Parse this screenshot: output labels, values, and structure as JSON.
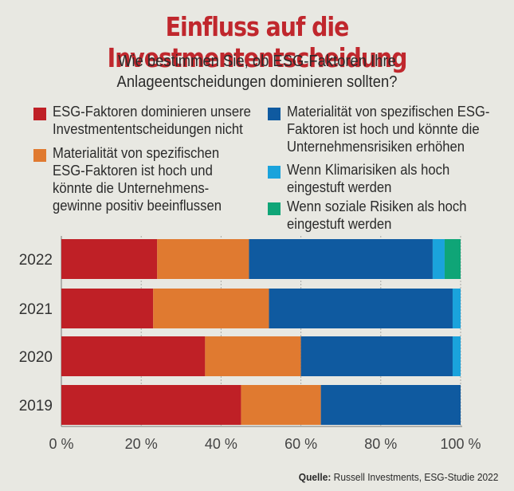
{
  "header": {
    "title": "Einfluss auf die Investmententscheidung",
    "subtitle_line1": "Wie bestimmen Sie, ob ESG-Faktoren Ihre",
    "subtitle_line2": "Anlageentscheidungen dominieren sollten?"
  },
  "legend": [
    {
      "label": "ESG-Faktoren dominieren unsere\nInvestmententscheidungen nicht",
      "color": "#bf2026"
    },
    {
      "label": "Materialität von spezifischen\nESG-Faktoren ist hoch und\nkönnte die Unternehmens-\ngewinne positiv beeinflussen",
      "color": "#e07a30"
    },
    {
      "label": "Materialität von spezifischen ESG-\nFaktoren ist hoch und könnte die\nUnternehmensrisiken erhöhen",
      "color": "#0f5aa0"
    },
    {
      "label": "Wenn Klimarisiken als hoch\neingestuft werden",
      "color": "#1aa3dc"
    },
    {
      "label": "Wenn soziale Risiken als hoch\neingestuft werden",
      "color": "#0fa577"
    }
  ],
  "source": {
    "label": "Quelle:",
    "text": "Russell Investments, ESG-Studie 2022"
  },
  "chart_data": {
    "type": "bar",
    "orientation": "horizontal",
    "stacked": true,
    "categories": [
      "2022",
      "2021",
      "2020",
      "2019"
    ],
    "series": [
      {
        "name": "ESG-Faktoren dominieren unsere Investmententscheidungen nicht",
        "color": "#bf2026",
        "values": [
          24,
          23,
          36,
          45
        ]
      },
      {
        "name": "Materialität von spezifischen ESG-Faktoren ist hoch und könnte die Unternehmensgewinne positiv beeinflussen",
        "color": "#e07a30",
        "values": [
          23,
          29,
          24,
          20
        ]
      },
      {
        "name": "Materialität von spezifischen ESG-Faktoren ist hoch und könnte die Unternehmensrisiken erhöhen",
        "color": "#0f5aa0",
        "values": [
          46,
          46,
          38,
          35
        ]
      },
      {
        "name": "Wenn Klimarisiken als hoch eingestuft werden",
        "color": "#1aa3dc",
        "values": [
          3,
          2,
          2,
          0
        ]
      },
      {
        "name": "Wenn soziale Risiken als hoch eingestuft werden",
        "color": "#0fa577",
        "values": [
          4,
          0,
          0,
          0
        ]
      }
    ],
    "xlim": [
      0,
      100
    ],
    "xticks": [
      0,
      20,
      40,
      60,
      80,
      100
    ],
    "xtick_labels": [
      "0 %",
      "20 %",
      "40 %",
      "60 %",
      "80 %",
      "100 %"
    ],
    "grid": true,
    "legend_position": "top"
  }
}
